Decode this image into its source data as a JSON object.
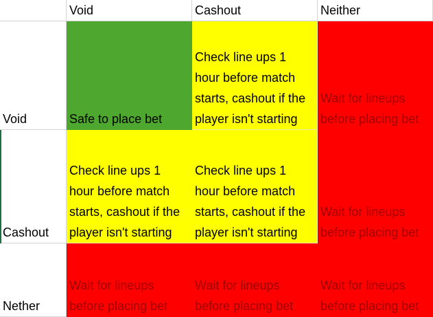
{
  "headers": [
    "Void",
    "Cashout",
    "Neither"
  ],
  "rows": [
    {
      "label": "Void",
      "cells": [
        {
          "text": "Safe to place bet",
          "color": "#4ea72e"
        },
        {
          "text": "Check line ups 1 hour before match starts, cashout if the player isn't starting",
          "color": "#ffff00"
        },
        {
          "text": "Wait for lineups before placing bet",
          "color": "#ff0000"
        }
      ]
    },
    {
      "label": "Cashout",
      "cells": [
        {
          "text": "Check line ups 1 hour before match starts, cashout if the player isn't starting",
          "color": "#ffff00"
        },
        {
          "text": "Check line ups 1 hour before match starts, cashout if the player isn't starting",
          "color": "#ffff00"
        },
        {
          "text": "Wait for lineups before placing bet",
          "color": "#ff0000"
        }
      ]
    },
    {
      "label": "Nether",
      "cells": [
        {
          "text": "Wait for lineups before placing bet",
          "color": "#ff0000"
        },
        {
          "text": "Wait for lineups before placing bet",
          "color": "#ff0000"
        },
        {
          "text": "Wait for lineups before placing bet",
          "color": "#ff0000"
        }
      ]
    }
  ]
}
